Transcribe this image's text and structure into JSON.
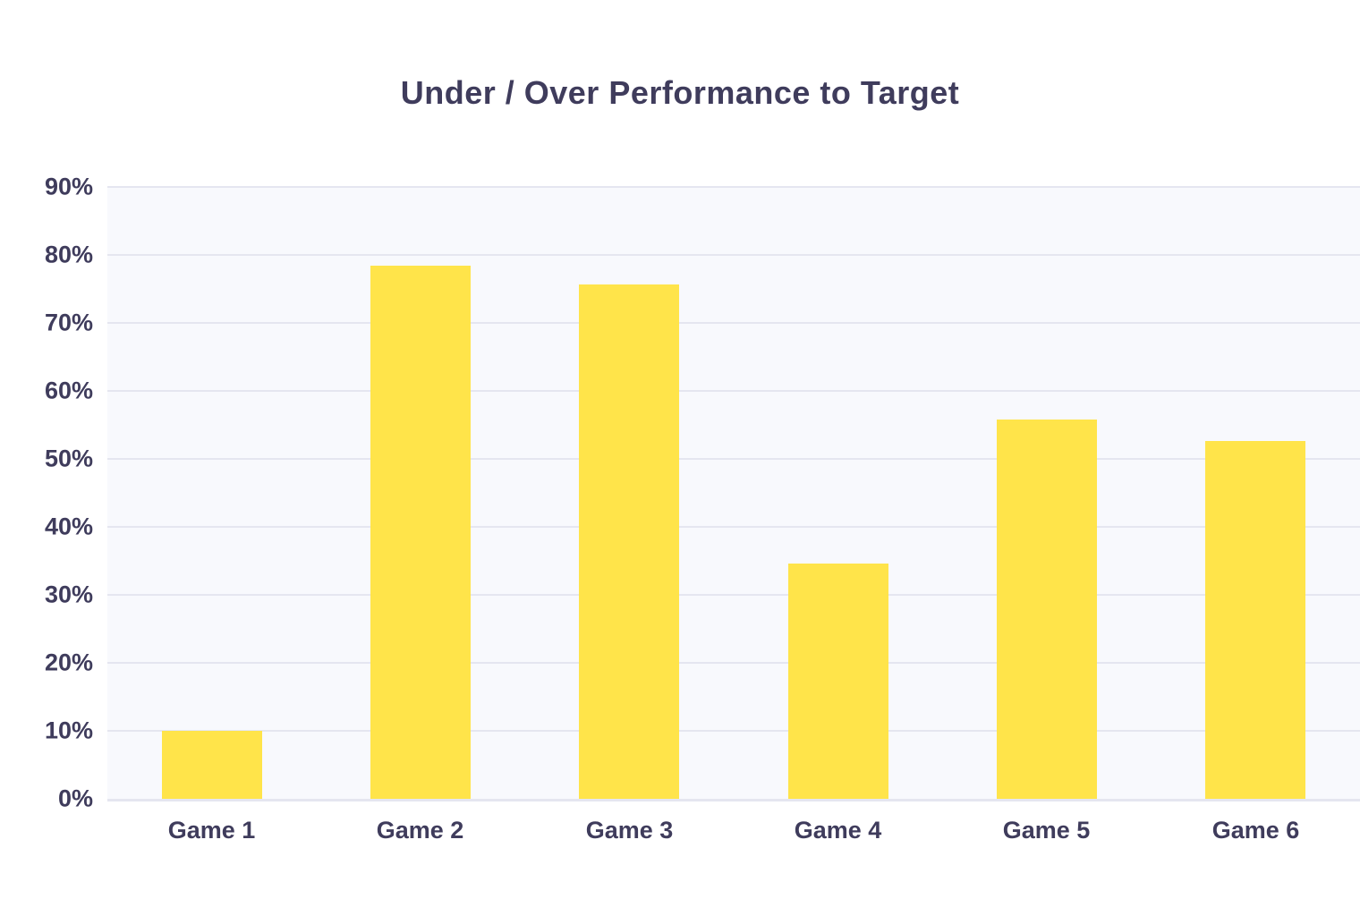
{
  "page": {
    "background_color": "#ffffff"
  },
  "chart_data": {
    "type": "bar",
    "title": "Under / Over Performance to Target",
    "categories": [
      "Game 1",
      "Game 2",
      "Game 3",
      "Game 4",
      "Game 5",
      "Game 6"
    ],
    "values": [
      10.0,
      78.4,
      75.7,
      34.6,
      55.8,
      52.6
    ],
    "unit": "%",
    "xlabel": "",
    "ylabel": "",
    "ylim": [
      0,
      90
    ],
    "ytick_values": [
      0,
      10,
      20,
      30,
      40,
      50,
      60,
      70,
      80,
      90
    ],
    "ytick_labels": [
      "0%",
      "10%",
      "20%",
      "30%",
      "40%",
      "50%",
      "60%",
      "70%",
      "80%",
      "90%"
    ],
    "legend": "none",
    "grid": "horizontal",
    "colors": {
      "bar": "#ffe44a",
      "plot_background": "#f8f9fd",
      "gridline": "#e5e6f0",
      "axis_line": "#e5e6f0",
      "text": "#3f3c5c",
      "page_background": "#ffffff"
    }
  }
}
